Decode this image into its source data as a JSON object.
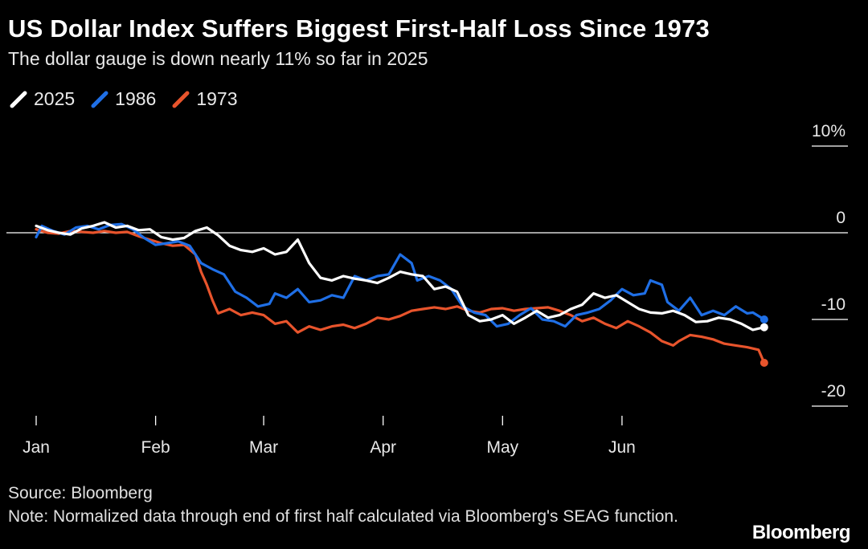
{
  "header": {
    "title": "US Dollar Index Suffers Biggest First-Half Loss Since 1973",
    "subtitle": "The dollar gauge is down nearly 11% so far in 2025"
  },
  "footer": {
    "source": "Source: Bloomberg",
    "note": "Note: Normalized data through end of first half calculated via Bloomberg's SEAG function.",
    "logo": "Bloomberg"
  },
  "colors": {
    "background": "#000000",
    "series_2025": "#ffffff",
    "series_1986": "#1f6fe6",
    "series_1973": "#e8542c",
    "zero_line": "#ffffff",
    "ticks": "#ffffff"
  },
  "chart_data": {
    "type": "line",
    "title": "US Dollar Index Suffers Biggest First-Half Loss Since 1973",
    "subtitle": "The dollar gauge is down nearly 11% so far in 2025",
    "x_unit": "trading day",
    "x_range": [
      0,
      130
    ],
    "ylim": [
      -20,
      10
    ],
    "y_ticks": [
      10,
      0,
      -10,
      -20
    ],
    "y_tick_labels": [
      "10%",
      "0",
      "-10",
      "-20"
    ],
    "x_ticks": [
      0,
      21,
      40,
      61,
      82,
      103
    ],
    "x_tick_labels": [
      "Jan",
      "Feb",
      "Mar",
      "Apr",
      "May",
      "Jun"
    ],
    "legend_position": "top-left",
    "grid": false,
    "series": [
      {
        "name": "2025",
        "color": "#ffffff",
        "points": [
          [
            0,
            0.8
          ],
          [
            2,
            0.3
          ],
          [
            4,
            0.0
          ],
          [
            6,
            -0.2
          ],
          [
            8,
            0.5
          ],
          [
            10,
            0.8
          ],
          [
            12,
            1.2
          ],
          [
            14,
            0.6
          ],
          [
            16,
            0.8
          ],
          [
            18,
            0.3
          ],
          [
            20,
            0.4
          ],
          [
            22,
            -0.5
          ],
          [
            24,
            -0.8
          ],
          [
            26,
            -0.6
          ],
          [
            28,
            0.2
          ],
          [
            30,
            0.6
          ],
          [
            32,
            -0.3
          ],
          [
            34,
            -1.5
          ],
          [
            36,
            -2.0
          ],
          [
            38,
            -2.2
          ],
          [
            40,
            -1.8
          ],
          [
            42,
            -2.5
          ],
          [
            44,
            -2.2
          ],
          [
            46,
            -0.8
          ],
          [
            48,
            -3.5
          ],
          [
            50,
            -5.2
          ],
          [
            52,
            -5.5
          ],
          [
            54,
            -5.0
          ],
          [
            56,
            -5.3
          ],
          [
            58,
            -5.5
          ],
          [
            60,
            -5.8
          ],
          [
            62,
            -5.2
          ],
          [
            64,
            -4.5
          ],
          [
            66,
            -4.8
          ],
          [
            68,
            -5.0
          ],
          [
            70,
            -6.5
          ],
          [
            72,
            -6.2
          ],
          [
            74,
            -6.8
          ],
          [
            76,
            -9.5
          ],
          [
            78,
            -10.2
          ],
          [
            80,
            -10.0
          ],
          [
            82,
            -9.5
          ],
          [
            84,
            -10.5
          ],
          [
            86,
            -9.8
          ],
          [
            88,
            -9.0
          ],
          [
            90,
            -9.8
          ],
          [
            92,
            -9.5
          ],
          [
            94,
            -8.8
          ],
          [
            96,
            -8.3
          ],
          [
            98,
            -7.0
          ],
          [
            100,
            -7.5
          ],
          [
            102,
            -7.2
          ],
          [
            104,
            -8.0
          ],
          [
            106,
            -8.8
          ],
          [
            108,
            -9.2
          ],
          [
            110,
            -9.3
          ],
          [
            112,
            -9.0
          ],
          [
            114,
            -9.5
          ],
          [
            116,
            -10.3
          ],
          [
            118,
            -10.2
          ],
          [
            120,
            -9.8
          ],
          [
            122,
            -10.0
          ],
          [
            124,
            -10.5
          ],
          [
            126,
            -11.2
          ],
          [
            128,
            -10.9
          ]
        ]
      },
      {
        "name": "1986",
        "color": "#1f6fe6",
        "points": [
          [
            0,
            -0.5
          ],
          [
            1,
            0.8
          ],
          [
            3,
            0.2
          ],
          [
            5,
            -0.2
          ],
          [
            7,
            0.6
          ],
          [
            9,
            0.8
          ],
          [
            11,
            0.4
          ],
          [
            13,
            0.9
          ],
          [
            15,
            1.0
          ],
          [
            17,
            0.4
          ],
          [
            19,
            -0.6
          ],
          [
            21,
            -1.4
          ],
          [
            23,
            -1.2
          ],
          [
            25,
            -1.0
          ],
          [
            27,
            -1.5
          ],
          [
            29,
            -3.5
          ],
          [
            31,
            -4.2
          ],
          [
            33,
            -4.8
          ],
          [
            35,
            -6.8
          ],
          [
            37,
            -7.5
          ],
          [
            39,
            -8.5
          ],
          [
            41,
            -8.2
          ],
          [
            42,
            -7.0
          ],
          [
            44,
            -7.5
          ],
          [
            46,
            -6.5
          ],
          [
            48,
            -8.0
          ],
          [
            50,
            -7.8
          ],
          [
            52,
            -7.2
          ],
          [
            54,
            -7.5
          ],
          [
            56,
            -5.0
          ],
          [
            58,
            -5.5
          ],
          [
            60,
            -5.0
          ],
          [
            62,
            -4.8
          ],
          [
            64,
            -2.5
          ],
          [
            66,
            -3.5
          ],
          [
            67,
            -5.5
          ],
          [
            69,
            -5.0
          ],
          [
            71,
            -5.5
          ],
          [
            73,
            -6.5
          ],
          [
            75,
            -8.5
          ],
          [
            77,
            -9.2
          ],
          [
            79,
            -9.5
          ],
          [
            81,
            -10.8
          ],
          [
            83,
            -10.5
          ],
          [
            85,
            -9.5
          ],
          [
            87,
            -8.7
          ],
          [
            89,
            -10.0
          ],
          [
            91,
            -10.2
          ],
          [
            93,
            -10.8
          ],
          [
            95,
            -9.5
          ],
          [
            97,
            -9.2
          ],
          [
            99,
            -8.8
          ],
          [
            101,
            -7.8
          ],
          [
            103,
            -6.5
          ],
          [
            105,
            -7.2
          ],
          [
            107,
            -7.0
          ],
          [
            108,
            -5.5
          ],
          [
            110,
            -6.0
          ],
          [
            111,
            -8.0
          ],
          [
            113,
            -9.0
          ],
          [
            115,
            -7.5
          ],
          [
            117,
            -9.5
          ],
          [
            119,
            -9.0
          ],
          [
            121,
            -9.5
          ],
          [
            123,
            -8.5
          ],
          [
            125,
            -9.3
          ],
          [
            126,
            -9.2
          ],
          [
            128,
            -10.0
          ]
        ]
      },
      {
        "name": "1973",
        "color": "#e8542c",
        "points": [
          [
            0,
            0.4
          ],
          [
            2,
            0.0
          ],
          [
            4,
            -0.1
          ],
          [
            6,
            0.2
          ],
          [
            8,
            0.1
          ],
          [
            10,
            0.0
          ],
          [
            12,
            0.2
          ],
          [
            14,
            0.0
          ],
          [
            16,
            0.1
          ],
          [
            18,
            -0.4
          ],
          [
            20,
            -0.8
          ],
          [
            22,
            -1.2
          ],
          [
            24,
            -1.5
          ],
          [
            26,
            -1.4
          ],
          [
            28,
            -2.5
          ],
          [
            29,
            -4.5
          ],
          [
            30,
            -6.0
          ],
          [
            31,
            -7.8
          ],
          [
            32,
            -9.3
          ],
          [
            34,
            -8.8
          ],
          [
            36,
            -9.5
          ],
          [
            38,
            -9.2
          ],
          [
            40,
            -9.5
          ],
          [
            42,
            -10.5
          ],
          [
            44,
            -10.2
          ],
          [
            46,
            -11.5
          ],
          [
            48,
            -10.8
          ],
          [
            50,
            -11.2
          ],
          [
            52,
            -10.8
          ],
          [
            54,
            -10.6
          ],
          [
            56,
            -11.0
          ],
          [
            58,
            -10.5
          ],
          [
            60,
            -9.8
          ],
          [
            62,
            -10.0
          ],
          [
            64,
            -9.6
          ],
          [
            66,
            -9.0
          ],
          [
            68,
            -8.8
          ],
          [
            70,
            -8.6
          ],
          [
            72,
            -8.8
          ],
          [
            74,
            -8.5
          ],
          [
            76,
            -9.0
          ],
          [
            78,
            -9.2
          ],
          [
            80,
            -8.8
          ],
          [
            82,
            -8.7
          ],
          [
            84,
            -9.0
          ],
          [
            86,
            -8.8
          ],
          [
            88,
            -8.7
          ],
          [
            90,
            -8.6
          ],
          [
            92,
            -9.0
          ],
          [
            94,
            -9.5
          ],
          [
            96,
            -10.2
          ],
          [
            98,
            -9.8
          ],
          [
            100,
            -10.5
          ],
          [
            102,
            -11.0
          ],
          [
            104,
            -10.2
          ],
          [
            106,
            -10.8
          ],
          [
            108,
            -11.5
          ],
          [
            110,
            -12.5
          ],
          [
            112,
            -13.0
          ],
          [
            113,
            -12.5
          ],
          [
            115,
            -11.8
          ],
          [
            117,
            -12.0
          ],
          [
            119,
            -12.3
          ],
          [
            121,
            -12.8
          ],
          [
            123,
            -13.0
          ],
          [
            125,
            -13.2
          ],
          [
            127,
            -13.5
          ],
          [
            128,
            -15.0
          ]
        ]
      }
    ]
  }
}
